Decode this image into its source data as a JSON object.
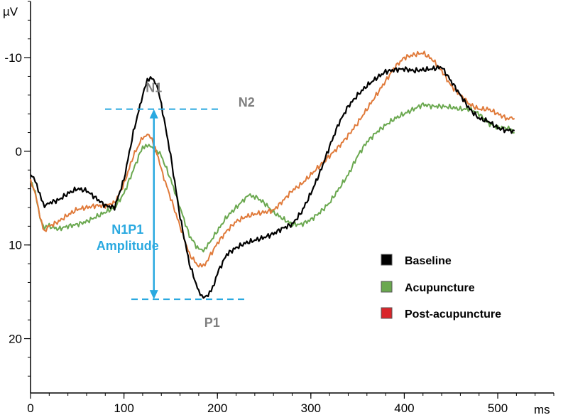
{
  "chart_data": {
    "type": "line",
    "y_unit_label": "µV",
    "x_unit_label": "ms",
    "xlim": [
      0,
      560
    ],
    "ylim": [
      25.8,
      -16
    ],
    "y_inverted": true,
    "x_ticks": [
      0,
      100,
      200,
      300,
      400,
      500
    ],
    "y_ticks": [
      -10,
      0,
      10,
      20
    ],
    "x_tick_labels": [
      "0",
      "100",
      "200",
      "300",
      "400",
      "500"
    ],
    "y_tick_labels": [
      "-10",
      "0",
      "10",
      "20"
    ],
    "x_minor_step": 20,
    "y_minor_step": 2,
    "grid": false,
    "legend_position": "right",
    "series": [
      {
        "name": "Baseline",
        "color": "#000000",
        "x": [
          0,
          5,
          10,
          15,
          20,
          30,
          40,
          50,
          60,
          70,
          80,
          90,
          100,
          110,
          120,
          125,
          130,
          135,
          140,
          150,
          160,
          170,
          180,
          185,
          190,
          195,
          200,
          210,
          220,
          230,
          240,
          250,
          260,
          270,
          280,
          290,
          300,
          310,
          320,
          330,
          340,
          350,
          360,
          370,
          380,
          390,
          400,
          410,
          420,
          430,
          440,
          450,
          460,
          470,
          480,
          490,
          500,
          510,
          518
        ],
        "y": [
          2.5,
          3.2,
          4.5,
          6,
          5.5,
          5.2,
          4.5,
          4,
          4.2,
          5,
          5.8,
          6,
          3,
          -2,
          -6,
          -7.5,
          -8,
          -7,
          -5,
          0.5,
          7,
          12,
          15,
          15.5,
          15.5,
          14.5,
          13,
          11,
          10.3,
          9.8,
          9.5,
          9.2,
          8.8,
          8.2,
          7.8,
          6.5,
          4.5,
          2.2,
          -0.5,
          -3,
          -4.8,
          -6,
          -7,
          -7.8,
          -8.5,
          -8.7,
          -8.8,
          -8.6,
          -8.7,
          -8.8,
          -9,
          -7.5,
          -6,
          -4.5,
          -3.5,
          -3.2,
          -2.5,
          -2.2,
          -2.2
        ]
      },
      {
        "name": "Acupuncture",
        "color": "#6aa84f",
        "x": [
          0,
          5,
          10,
          15,
          20,
          30,
          40,
          50,
          60,
          70,
          80,
          90,
          100,
          110,
          120,
          125,
          130,
          135,
          140,
          150,
          160,
          170,
          180,
          185,
          190,
          200,
          210,
          220,
          230,
          235,
          240,
          250,
          260,
          270,
          280,
          290,
          300,
          310,
          320,
          330,
          340,
          350,
          360,
          370,
          380,
          390,
          400,
          410,
          420,
          430,
          440,
          450,
          460,
          470,
          480,
          490,
          500,
          510,
          518
        ],
        "y": [
          3,
          4.5,
          7,
          8.2,
          8,
          8.3,
          8,
          7.8,
          7.5,
          7,
          6.5,
          6,
          4.5,
          2,
          -0.5,
          -0.5,
          -0.5,
          0,
          0.5,
          3,
          6,
          9,
          10.5,
          10.5,
          10,
          8.5,
          7,
          6,
          5,
          4.7,
          4.8,
          5.5,
          6.5,
          7.2,
          7.8,
          7.8,
          7.3,
          6.5,
          5.5,
          4,
          2.5,
          0.5,
          -1,
          -2,
          -2.8,
          -3.5,
          -4,
          -4.5,
          -5,
          -4.8,
          -4.8,
          -4.7,
          -4.5,
          -4.5,
          -4,
          -3,
          -2.5,
          -2.5,
          -2
        ]
      },
      {
        "name": "Post-acupuncture",
        "color": "#e07a3a",
        "x": [
          0,
          5,
          10,
          15,
          20,
          30,
          40,
          50,
          60,
          70,
          80,
          90,
          100,
          110,
          120,
          125,
          130,
          135,
          140,
          150,
          160,
          170,
          180,
          185,
          190,
          200,
          210,
          220,
          230,
          240,
          250,
          260,
          270,
          280,
          290,
          300,
          310,
          320,
          330,
          340,
          350,
          360,
          370,
          380,
          390,
          400,
          410,
          420,
          430,
          440,
          450,
          460,
          470,
          480,
          490,
          500,
          510,
          518
        ],
        "y": [
          3,
          4.5,
          7,
          8.5,
          8,
          7.5,
          6.8,
          6.2,
          6,
          5.8,
          5.8,
          5.5,
          3.5,
          0.5,
          -1.5,
          -1.8,
          -1.2,
          0,
          2,
          5,
          8,
          11,
          12.3,
          12.2,
          11.5,
          9.8,
          8.5,
          7.5,
          7,
          6.7,
          6.5,
          6.3,
          5.3,
          4.2,
          3.5,
          2.5,
          1.5,
          0.5,
          -0.5,
          -1.7,
          -3,
          -4.5,
          -6,
          -7.5,
          -9,
          -10,
          -10.3,
          -10.5,
          -9.8,
          -8.6,
          -7,
          -6,
          -5,
          -4.5,
          -4.5,
          -4,
          -3.5,
          -3.5
        ]
      }
    ],
    "annotations": {
      "n1_label": "N1",
      "n2_label": "N2",
      "p1_label": "P1",
      "amplitude_label_line1": "N1P1",
      "amplitude_label_line2": "Amplitude",
      "n1_x": 132,
      "n1_y": -4.5,
      "p1_y": 15.8,
      "n2_x": 235,
      "n2_y": -2.5,
      "annotation_color": "#2aa9e0",
      "label_color": "#7f7f7f"
    }
  }
}
